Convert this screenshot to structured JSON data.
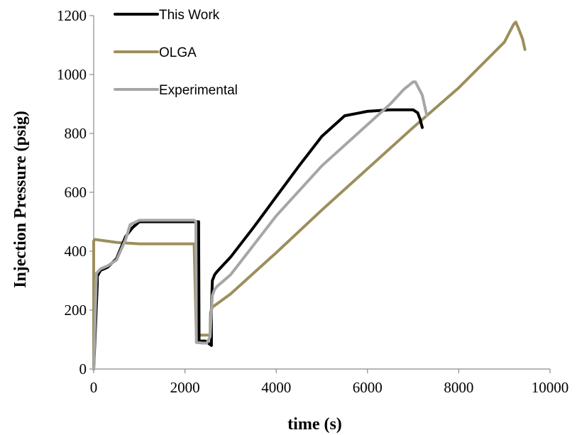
{
  "chart_data": {
    "type": "line",
    "title": "",
    "xlabel": "time (s)",
    "ylabel": "Injection Pressure (psig)",
    "xlim": [
      0,
      10000
    ],
    "ylim": [
      0,
      1200
    ],
    "xticks": [
      0,
      2000,
      4000,
      6000,
      8000,
      10000
    ],
    "yticks": [
      0,
      200,
      400,
      600,
      800,
      1000,
      1200
    ],
    "grid": false,
    "legend_position": "top-left",
    "series": [
      {
        "name": "This Work",
        "color": "#000000",
        "x": [
          0,
          80,
          80,
          150,
          300,
          500,
          700,
          850,
          1000,
          1500,
          2000,
          2200,
          2300,
          2300,
          2310,
          2450,
          2580,
          2580,
          2600,
          2650,
          2700,
          3000,
          3500,
          4000,
          4500,
          5000,
          5500,
          6000,
          6500,
          7000,
          7100,
          7150,
          7200
        ],
        "y": [
          0,
          290,
          315,
          335,
          345,
          375,
          450,
          480,
          500,
          500,
          500,
          500,
          500,
          460,
          95,
          95,
          80,
          200,
          300,
          320,
          330,
          380,
          480,
          585,
          690,
          790,
          860,
          875,
          880,
          880,
          870,
          850,
          820
        ]
      },
      {
        "name": "OLGA",
        "color": "#9c8f5c",
        "x": [
          0,
          0,
          20,
          500,
          1000,
          2000,
          2200,
          2250,
          2550,
          2560,
          2600,
          3000,
          4000,
          5000,
          6000,
          7000,
          8000,
          9000,
          9200,
          9250,
          9300,
          9400,
          9450
        ],
        "y": [
          0,
          435,
          440,
          430,
          425,
          425,
          425,
          115,
          115,
          190,
          210,
          255,
          395,
          540,
          680,
          820,
          955,
          1110,
          1170,
          1178,
          1160,
          1120,
          1085
        ]
      },
      {
        "name": "Experimental",
        "color": "#a6a6a6",
        "x": [
          0,
          60,
          150,
          300,
          500,
          700,
          800,
          1000,
          1500,
          2000,
          2200,
          2240,
          2250,
          2400,
          2480,
          2550,
          2600,
          2650,
          2700,
          3000,
          4000,
          5000,
          6000,
          6500,
          6800,
          7000,
          7050,
          7200,
          7300
        ],
        "y": [
          0,
          325,
          340,
          350,
          370,
          440,
          490,
          505,
          505,
          505,
          505,
          500,
          90,
          88,
          88,
          110,
          250,
          270,
          280,
          320,
          520,
          690,
          830,
          900,
          950,
          975,
          975,
          930,
          860
        ]
      }
    ]
  }
}
